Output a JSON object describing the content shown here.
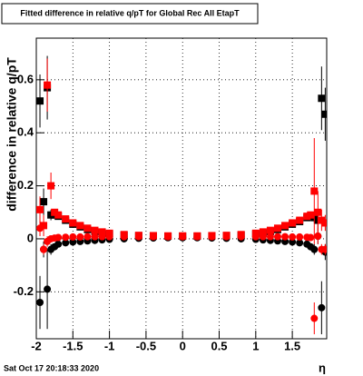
{
  "chart_data": {
    "type": "scatter",
    "title": "Fitted difference in relative q/pT for Global Rec All EtapT",
    "y_label": "difference in relative q/pT",
    "x_label": "η",
    "footer": "Sat Oct 17 20:18:33 2020",
    "xlim": [
      -2,
      1.97
    ],
    "ylim": [
      -0.377,
      0.757
    ],
    "xticks": [
      -2,
      -1.5,
      -1,
      -0.5,
      0,
      0.5,
      1,
      1.5
    ],
    "yticks": [
      -0.2,
      0,
      0.2,
      0.4,
      0.6
    ],
    "grid": true,
    "x": [
      -1.95,
      -1.9,
      -1.85,
      -1.8,
      -1.75,
      -1.7,
      -1.6,
      -1.5,
      -1.4,
      -1.3,
      -1.2,
      -1.1,
      -1.0,
      -0.8,
      -0.6,
      -0.4,
      -0.2,
      0,
      0.2,
      0.4,
      0.6,
      0.8,
      1.0,
      1.1,
      1.2,
      1.3,
      1.4,
      1.5,
      1.6,
      1.7,
      1.75,
      1.8,
      1.85,
      1.9,
      1.95
    ],
    "series": [
      {
        "color": "#000000",
        "marker": "square",
        "values": [
          0.52,
          0.14,
          0.57,
          0.09,
          0.09,
          0.085,
          0.07,
          0.055,
          0.045,
          0.035,
          0.028,
          0.022,
          0.018,
          0.014,
          0.012,
          0.011,
          0.01,
          0.01,
          0.01,
          0.011,
          0.012,
          0.014,
          0.018,
          0.022,
          0.028,
          0.035,
          0.045,
          0.055,
          0.065,
          0.08,
          0.085,
          0.08,
          0.07,
          0.53,
          0.47
        ],
        "errors": [
          0.1,
          0.05,
          0.12,
          0.02,
          0.01,
          0.008,
          0.006,
          0.005,
          0.004,
          0.004,
          0.003,
          0.003,
          0.003,
          0.003,
          0.003,
          0.003,
          0.003,
          0.003,
          0.003,
          0.003,
          0.003,
          0.003,
          0.003,
          0.003,
          0.003,
          0.004,
          0.004,
          0.005,
          0.006,
          0.008,
          0.01,
          0.02,
          0.03,
          0.12,
          0.1
        ]
      },
      {
        "color": "#000000",
        "marker": "circle",
        "values": [
          -0.24,
          -0.04,
          -0.19,
          -0.04,
          -0.03,
          -0.02,
          -0.015,
          -0.012,
          -0.01,
          -0.008,
          -0.006,
          -0.004,
          -0.002,
          0,
          0.002,
          0.003,
          0.004,
          0.004,
          0.004,
          0.003,
          0.002,
          0,
          -0.002,
          -0.004,
          -0.006,
          -0.008,
          -0.01,
          -0.012,
          -0.015,
          -0.02,
          -0.03,
          -0.04,
          0.01,
          -0.26,
          -0.05
        ],
        "errors": [
          0.1,
          0.03,
          0.15,
          0.02,
          0.01,
          0.008,
          0.006,
          0.005,
          0.004,
          0.004,
          0.003,
          0.003,
          0.003,
          0.003,
          0.003,
          0.003,
          0.003,
          0.003,
          0.003,
          0.003,
          0.003,
          0.003,
          0.003,
          0.003,
          0.003,
          0.004,
          0.004,
          0.005,
          0.006,
          0.008,
          0.01,
          0.02,
          0.03,
          0.1,
          0.03
        ]
      },
      {
        "color": "#ff0000",
        "marker": "square",
        "values": [
          0.11,
          0.05,
          0.58,
          0.2,
          0.1,
          0.09,
          0.075,
          0.06,
          0.05,
          0.04,
          0.032,
          0.026,
          0.021,
          0.016,
          0.013,
          0.012,
          0.011,
          0.011,
          0.011,
          0.012,
          0.013,
          0.016,
          0.021,
          0.026,
          0.032,
          0.04,
          0.05,
          0.06,
          0.07,
          0.085,
          0.09,
          0.18,
          0.1,
          0.07,
          0.06
        ],
        "errors": [
          0.05,
          0.04,
          0.1,
          0.05,
          0.01,
          0.008,
          0.006,
          0.005,
          0.004,
          0.004,
          0.003,
          0.003,
          0.003,
          0.003,
          0.003,
          0.003,
          0.003,
          0.003,
          0.003,
          0.003,
          0.003,
          0.003,
          0.003,
          0.003,
          0.003,
          0.004,
          0.004,
          0.005,
          0.006,
          0.008,
          0.01,
          0.2,
          0.08,
          0.04,
          0.03
        ]
      },
      {
        "color": "#ff0000",
        "marker": "circle",
        "values": [
          0.04,
          -0.04,
          -0.01,
          0,
          0.003,
          0.005,
          0.006,
          0.007,
          0.007,
          0.008,
          0.008,
          0.008,
          0.008,
          0.008,
          0.008,
          0.008,
          0.008,
          0.008,
          0.008,
          0.008,
          0.008,
          0.008,
          0.008,
          0.008,
          0.008,
          0.008,
          0.008,
          0.007,
          0.007,
          0.006,
          0.005,
          -0.3,
          0.01,
          -0.04,
          -0.04
        ],
        "errors": [
          0.03,
          0.02,
          0.02,
          0.01,
          0.006,
          0.005,
          0.004,
          0.004,
          0.003,
          0.003,
          0.003,
          0.003,
          0.003,
          0.003,
          0.003,
          0.003,
          0.003,
          0.003,
          0.003,
          0.003,
          0.003,
          0.003,
          0.003,
          0.003,
          0.003,
          0.003,
          0.003,
          0.004,
          0.004,
          0.005,
          0.006,
          0.06,
          0.03,
          0.02,
          0.02
        ]
      }
    ]
  }
}
